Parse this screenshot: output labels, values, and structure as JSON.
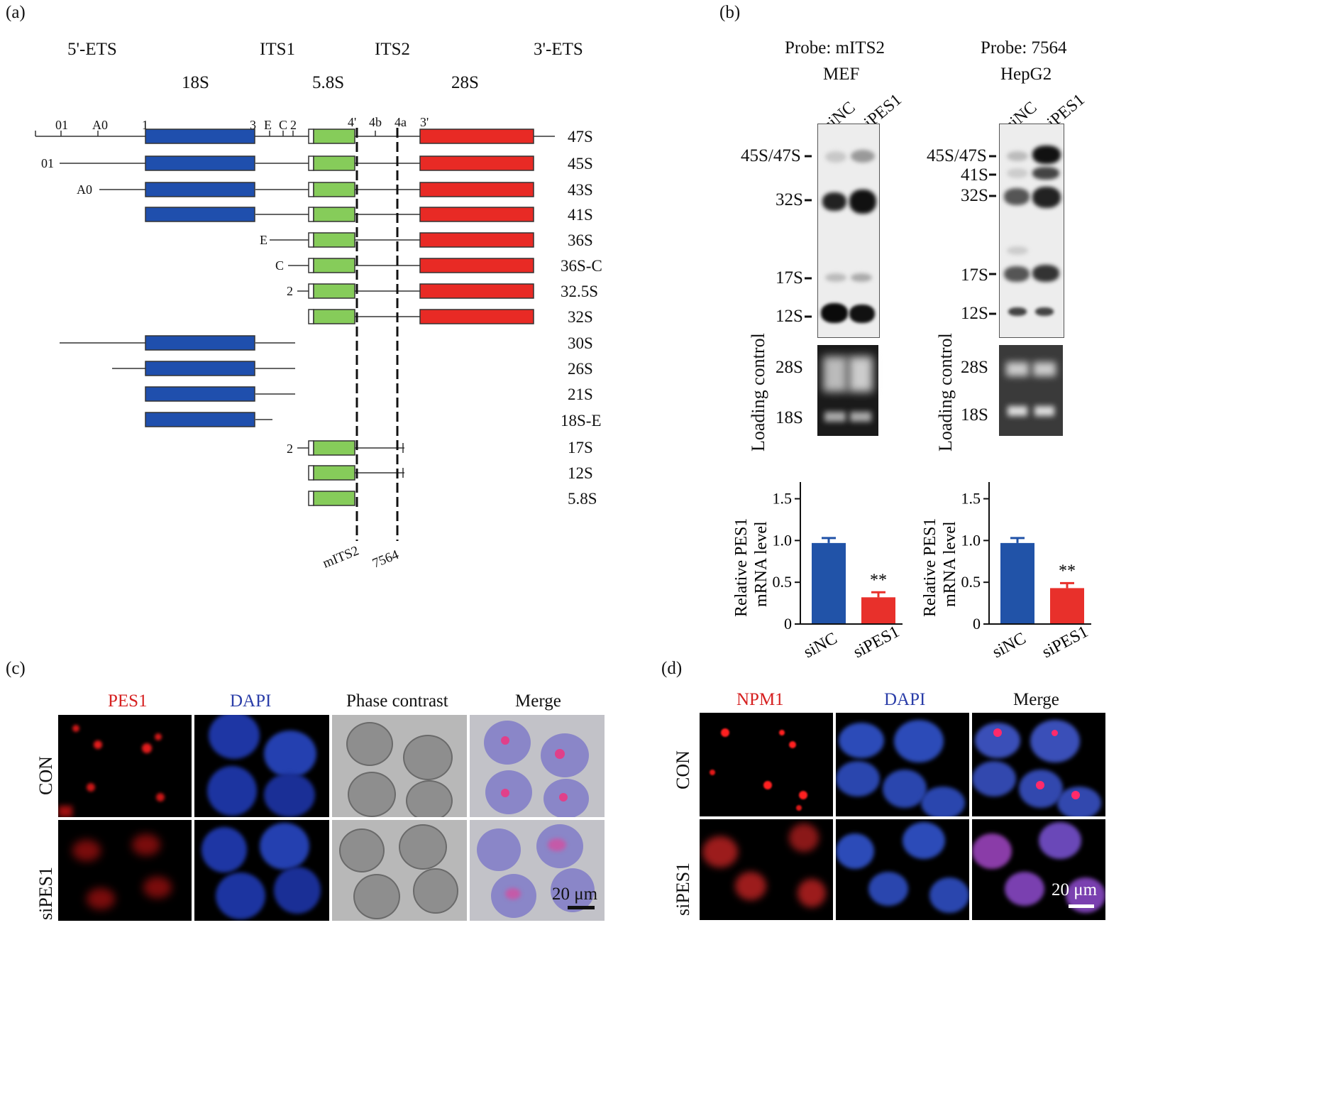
{
  "panels": {
    "a": "(a)",
    "b": "(b)",
    "c": "(c)",
    "d": "(d)"
  },
  "panel_a": {
    "regions": [
      "5'-ETS",
      "ITS1",
      "ITS2",
      "3'-ETS"
    ],
    "subunits": [
      "18S",
      "5.8S",
      "28S"
    ],
    "sites_top": [
      "01",
      "A0",
      "1",
      "3",
      "E",
      "C",
      "2",
      "4'",
      "4b",
      "4a",
      "3'"
    ],
    "species": [
      "47S",
      "45S",
      "43S",
      "41S",
      "36S",
      "36S-C",
      "32.5S",
      "32S",
      "30S",
      "26S",
      "21S",
      "18S-E",
      "17S",
      "12S",
      "5.8S"
    ],
    "row_start_labels": [
      "01",
      "A0",
      "E",
      "C",
      "2",
      "2"
    ],
    "probes": [
      "mITS2",
      "7564"
    ],
    "colors": {
      "18S": "#1f4fad",
      "5.8S": "#86cc5a",
      "28S": "#e82a25"
    }
  },
  "panel_b": {
    "left": {
      "probe": "Probe: mITS2",
      "cell": "MEF",
      "lanes": [
        "siNC",
        "siPES1"
      ],
      "bands": [
        "45S/47S",
        "32S",
        "17S",
        "12S"
      ],
      "loading_label": "Loading control",
      "loading_bands": [
        "28S",
        "18S"
      ]
    },
    "right": {
      "probe": "Probe: 7564",
      "cell": "HepG2",
      "lanes": [
        "siNC",
        "siPES1"
      ],
      "bands": [
        "45S/47S",
        "41S",
        "32S",
        "17S",
        "12S"
      ],
      "loading_label": "Loading control",
      "loading_bands": [
        "28S",
        "18S"
      ]
    }
  },
  "chart_data": [
    {
      "type": "bar",
      "categories": [
        "siNC",
        "siPES1"
      ],
      "values": [
        0.97,
        0.32
      ],
      "errors": [
        0.06,
        0.06
      ],
      "colors": [
        "#2153a8",
        "#e8302b"
      ],
      "ylabel": "Relative PES1 mRNA level",
      "yticks": [
        "0",
        "0.5",
        "1.0",
        "1.5"
      ],
      "ylim": [
        0,
        1.7
      ],
      "annotation": "**"
    },
    {
      "type": "bar",
      "categories": [
        "siNC",
        "siPES1"
      ],
      "values": [
        0.97,
        0.43
      ],
      "errors": [
        0.06,
        0.06
      ],
      "colors": [
        "#2153a8",
        "#e8302b"
      ],
      "ylabel": "Relative PES1 mRNA level",
      "yticks": [
        "0",
        "0.5",
        "1.0",
        "1.5"
      ],
      "ylim": [
        0,
        1.7
      ],
      "annotation": "**"
    }
  ],
  "panel_c": {
    "columns": [
      "PES1",
      "DAPI",
      "Phase contrast",
      "Merge"
    ],
    "rows": [
      "CON",
      "siPES1"
    ],
    "scale": "20 μm"
  },
  "panel_d": {
    "columns": [
      "NPM1",
      "DAPI",
      "Merge"
    ],
    "rows": [
      "CON",
      "siPES1"
    ],
    "scale": "20 μm"
  }
}
